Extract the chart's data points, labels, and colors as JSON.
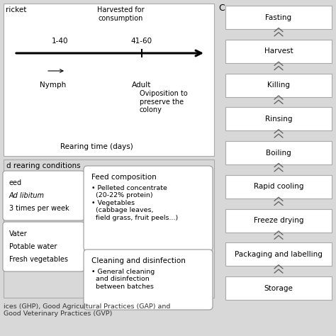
{
  "bg_color": "#d8d8d8",
  "white": "#ffffff",
  "edge_color": "#888888",
  "edge_dark": "#555555",
  "flow_steps": [
    "Fasting",
    "Harvest",
    "Killing",
    "Rinsing",
    "Boiling",
    "Rapid cooling",
    "Freeze drying",
    "Packaging and labelling",
    "Storage"
  ],
  "label_cricket": "ricket",
  "label_harvested": "Harvested for\nconsumption",
  "label_1_40": "1-40",
  "label_41_60": "41-60",
  "label_nymph": "Nymph",
  "label_adult": "Adult",
  "label_oviposition": "Oviposition to\npreserve the\ncolony",
  "label_rearing": "Rearing time (days)",
  "label_rearing_conditions": "d rearing conditions",
  "label_left_box1": [
    "eed",
    "Ad libitum",
    "3 times per week"
  ],
  "label_left_box2": [
    "Vater",
    "Potable water",
    "Fresh vegetables"
  ],
  "label_feed_title": "Feed composition",
  "label_feed_body": "• Pelleted concentrate\n  (20-22% protein)\n• Vegetables\n  (cabbage leaves,\n  field grass, fruit peels...)",
  "label_clean_title": "Cleaning and disinfection",
  "label_clean_body": "• General cleaning\n  and disinfection\n  between batches",
  "label_footer": "ices (GHP), Good Agricultural Practices (GAP) and\nGood Veterinary Practices (GVP)",
  "section_c": "C"
}
